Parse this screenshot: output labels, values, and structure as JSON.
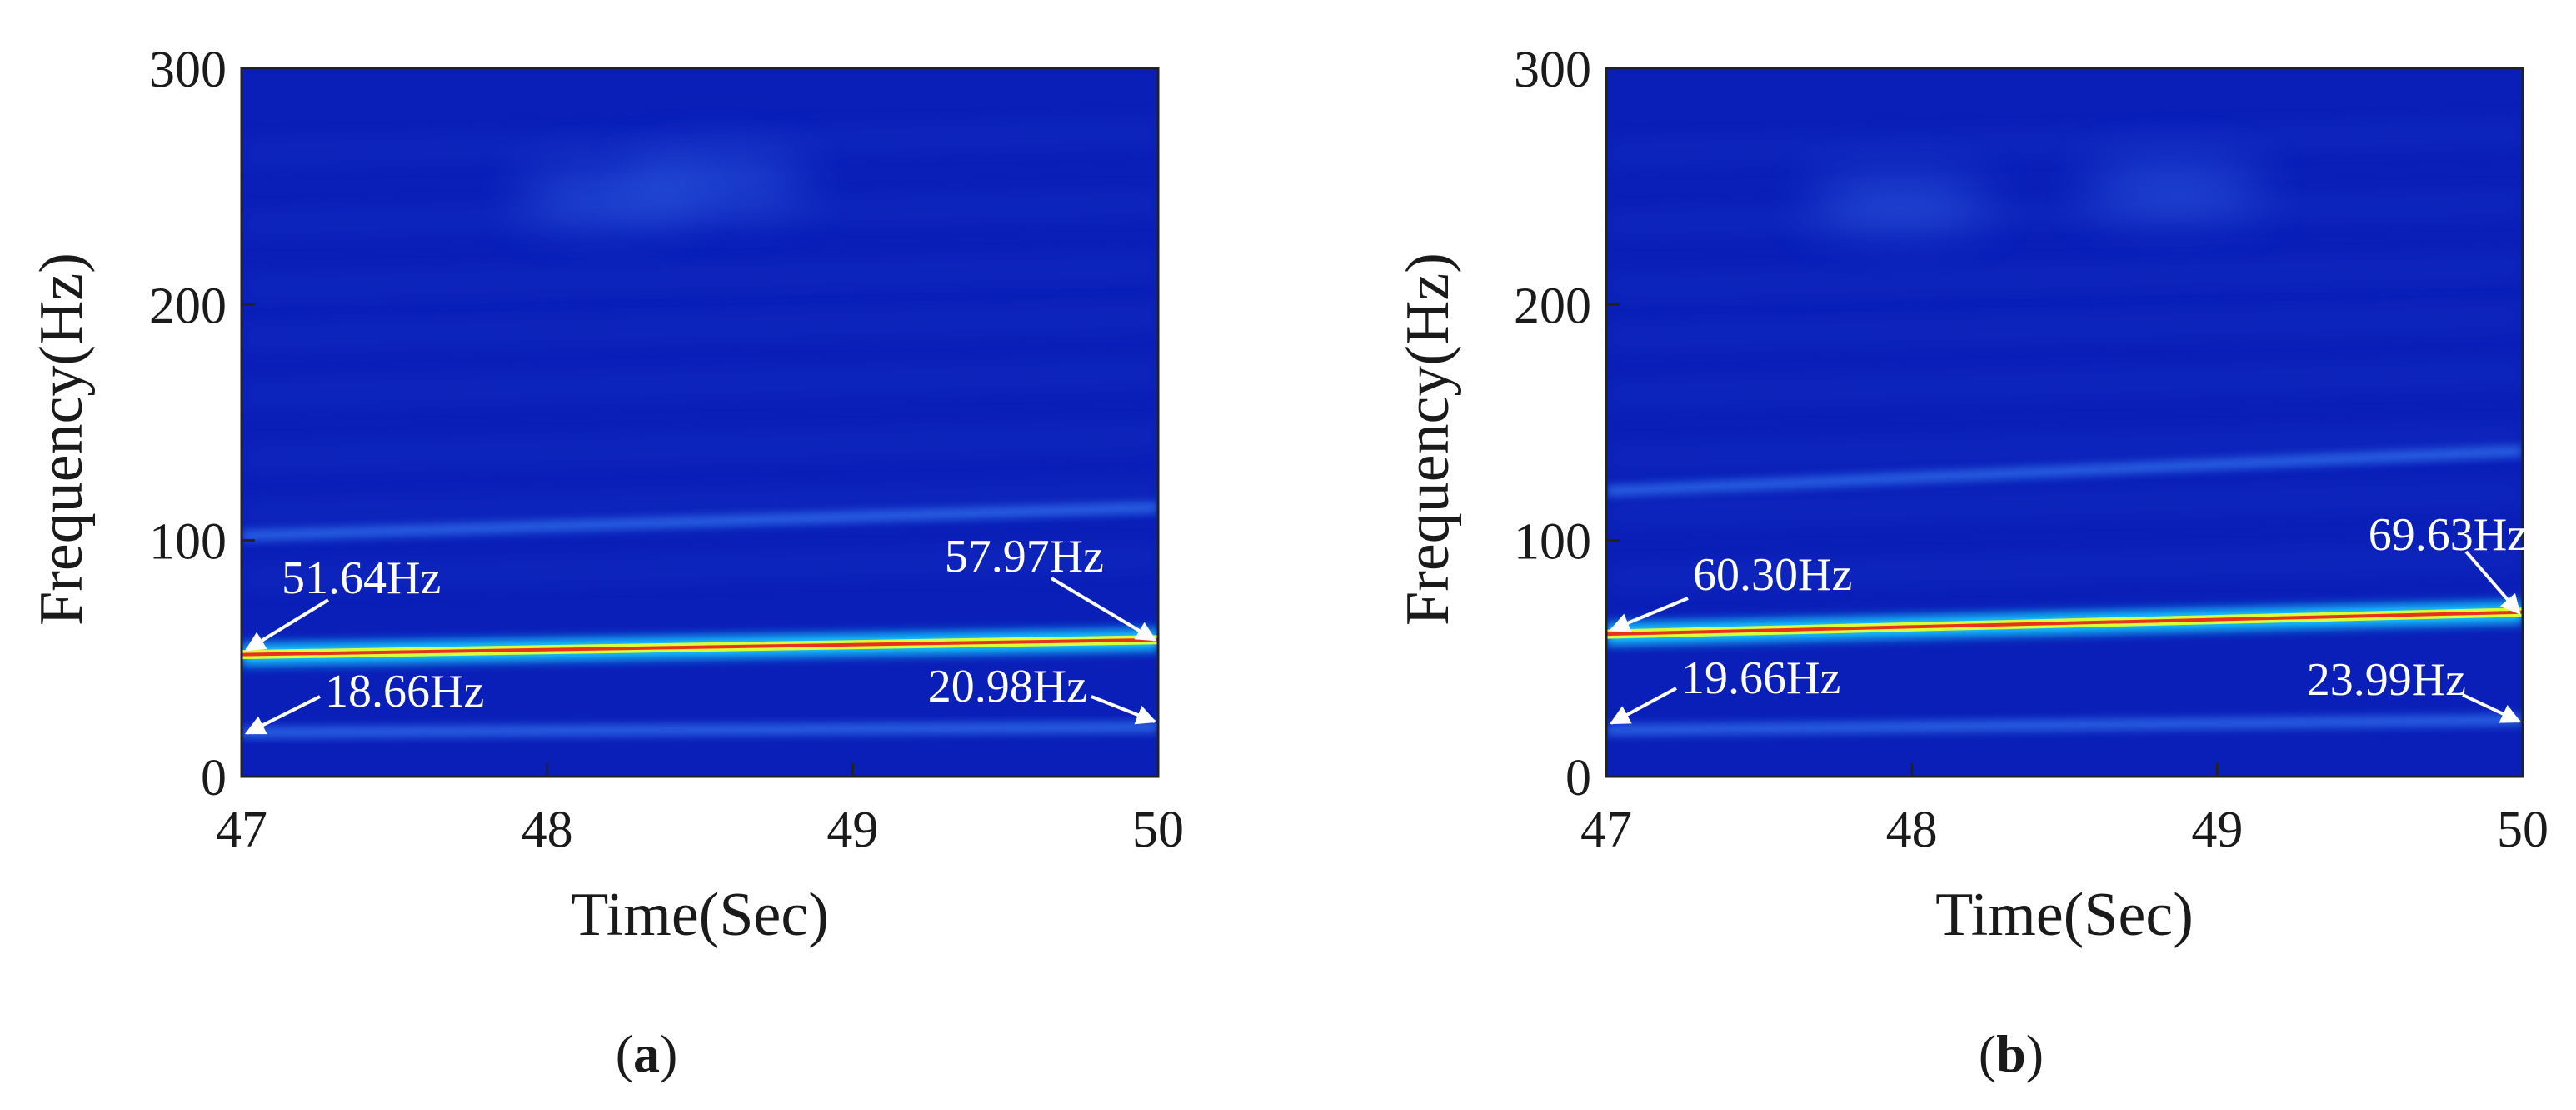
{
  "chart_data": [
    {
      "type": "heatmap",
      "panel": "a",
      "caption_letter": "a",
      "xlabel": "Time(Sec)",
      "ylabel": "Frequency(Hz)",
      "xlim": [
        47,
        50
      ],
      "ylim": [
        0,
        300
      ],
      "xticks": [
        "47",
        "48",
        "49",
        "50"
      ],
      "yticks": [
        "0",
        "100",
        "200",
        "300"
      ],
      "colormap": "jet",
      "background_color": "#0a1fb8",
      "ridges": [
        {
          "x": [
            47,
            50
          ],
          "y": [
            51.64,
            57.97
          ],
          "intensity": "high"
        },
        {
          "x": [
            47,
            50
          ],
          "y": [
            18.66,
            20.98
          ],
          "intensity": "low"
        },
        {
          "x": [
            47,
            50
          ],
          "y": [
            102,
            114
          ],
          "intensity": "low"
        }
      ],
      "annotations": [
        {
          "text": "51.64Hz",
          "x": 47,
          "y": 51.64
        },
        {
          "text": "18.66Hz",
          "x": 47,
          "y": 18.66
        },
        {
          "text": "57.97Hz",
          "x": 50,
          "y": 57.97
        },
        {
          "text": "20.98Hz",
          "x": 50,
          "y": 20.98
        }
      ]
    },
    {
      "type": "heatmap",
      "panel": "b",
      "caption_letter": "b",
      "xlabel": "Time(Sec)",
      "ylabel": "Frequency(Hz)",
      "xlim": [
        47,
        50
      ],
      "ylim": [
        0,
        300
      ],
      "xticks": [
        "47",
        "48",
        "49",
        "50"
      ],
      "yticks": [
        "0",
        "100",
        "200",
        "300"
      ],
      "colormap": "jet",
      "background_color": "#0a1fb8",
      "ridges": [
        {
          "x": [
            47,
            50
          ],
          "y": [
            60.3,
            69.63
          ],
          "intensity": "high"
        },
        {
          "x": [
            47,
            50
          ],
          "y": [
            19.66,
            23.99
          ],
          "intensity": "low"
        },
        {
          "x": [
            47,
            50
          ],
          "y": [
            121,
            138
          ],
          "intensity": "low"
        }
      ],
      "annotations": [
        {
          "text": "60.30Hz",
          "x": 47,
          "y": 60.3
        },
        {
          "text": "19.66Hz",
          "x": 47,
          "y": 19.66
        },
        {
          "text": "69.63Hz",
          "x": 50,
          "y": 69.63
        },
        {
          "text": "23.99Hz",
          "x": 50,
          "y": 23.99
        }
      ]
    }
  ]
}
